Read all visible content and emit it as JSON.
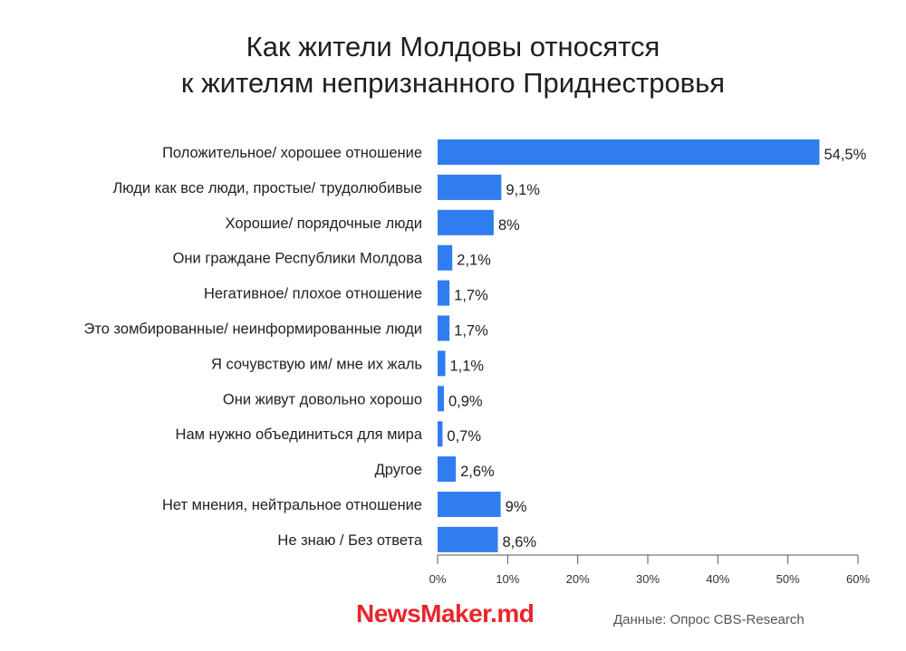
{
  "chart_data": {
    "type": "bar",
    "orientation": "horizontal",
    "title_lines": [
      "Как жители Молдовы относятся",
      "к жителям непризнанного Приднестровья"
    ],
    "categories": [
      "Положительное/ хорошее отношение",
      "Люди как все люди, простые/ трудолюбивые",
      "Хорошие/ порядочные люди",
      "Они граждане Республики Молдова",
      "Негативное/ плохое отношение",
      "Это зомбированные/ неинформированные люди",
      "Я сочувствую им/ мне их жаль",
      "Они живут довольно хорошо",
      "Нам нужно объединиться для мира",
      "Другое",
      "Нет мнения, нейтральное отношение",
      "Не знаю / Без ответа"
    ],
    "values": [
      54.5,
      9.1,
      8,
      2.1,
      1.7,
      1.7,
      1.1,
      0.9,
      0.7,
      2.6,
      9,
      8.6
    ],
    "value_labels": [
      "54,5%",
      "9,1%",
      "8%",
      "2,1%",
      "1,7%",
      "1,7%",
      "1,1%",
      "0,9%",
      "0,7%",
      "2,6%",
      "9%",
      "8,6%"
    ],
    "xlim": [
      0,
      60
    ],
    "x_ticks": [
      0,
      10,
      20,
      30,
      40,
      50,
      60
    ],
    "x_tick_labels": [
      "0%",
      "10%",
      "20%",
      "30%",
      "40%",
      "50%",
      "60%"
    ],
    "bar_color": "#2f7def",
    "grid": false,
    "legend": "none"
  },
  "footer": {
    "logo": "NewsMaker.md",
    "source": "Данные: Опрос CBS-Research"
  },
  "colors": {
    "logo": "#e8262c"
  }
}
